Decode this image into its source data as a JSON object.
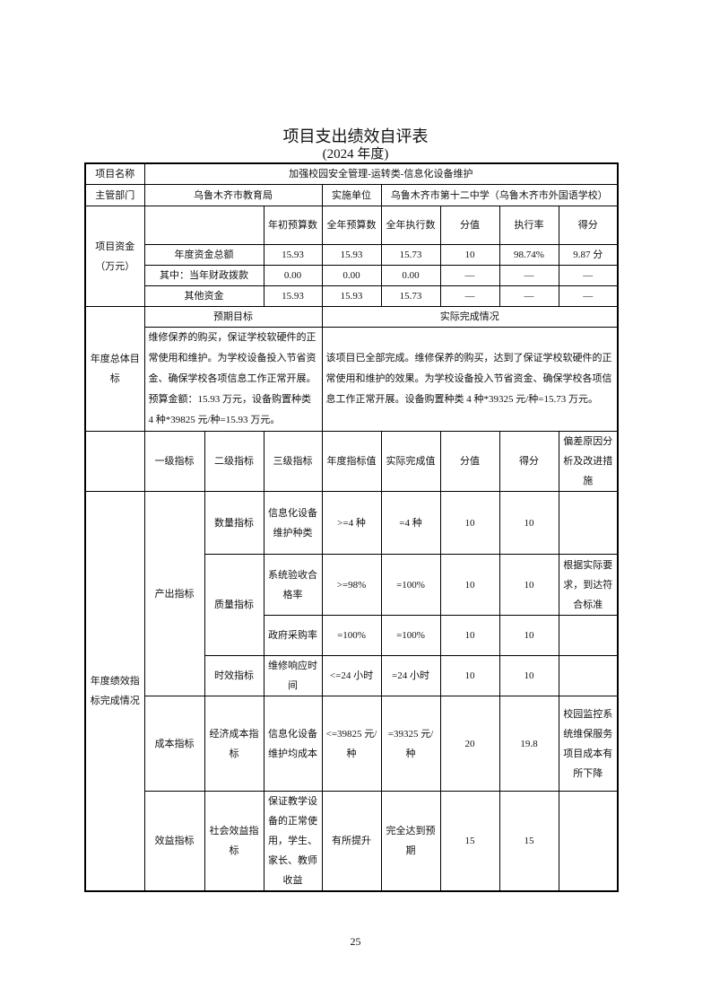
{
  "title": "项目支出绩效自评表",
  "subtitle": "(2024 年度)",
  "project": {
    "label": "项目名称",
    "value": "加强校园安全管理-运转类-信息化设备维护"
  },
  "dept": {
    "label": "主管部门",
    "value": "乌鲁木齐市教育局",
    "unit_label": "实施单位",
    "unit_value": "乌鲁木齐市第十二中学（乌鲁木齐市外国语学校）"
  },
  "funds": {
    "label": "项目资金（万元）",
    "headers": [
      "年初预算数",
      "全年预算数",
      "全年执行数",
      "分值",
      "执行率",
      "得分"
    ],
    "rows": [
      {
        "name": "年度资金总额",
        "values": [
          "15.93",
          "15.93",
          "15.73",
          "10",
          "98.74%",
          "9.87 分"
        ]
      },
      {
        "name": "其中：当年财政拨款",
        "values": [
          "0.00",
          "0.00",
          "0.00",
          "—",
          "—",
          "—"
        ]
      },
      {
        "name": "其他资金",
        "values": [
          "15.93",
          "15.93",
          "15.73",
          "—",
          "—",
          "—"
        ]
      }
    ]
  },
  "goals": {
    "label": "年度总体目标",
    "expected_header": "预期目标",
    "actual_header": "实际完成情况",
    "expected": "维修保养的购买，保证学校软硬件的正常使用和维护。为学校设备投入节省资金、确保学校各项信息工作正常开展。预算金额：15.93 万元，设备购置种类 4 种*39825 元/种=15.93 万元。",
    "actual": "该项目已全部完成。维修保养的购买，达到了保证学校软硬件的正常使用和维护的效果。为学校设备投入节省资金、确保学校各项信息工作正常开展。设备购置种类 4 种*39325 元/种=15.73 万元。"
  },
  "indicators": {
    "label": "年度绩效指标完成情况",
    "headers": [
      "一级指标",
      "二级指标",
      "三级指标",
      "年度指标值",
      "实际完成值",
      "分值",
      "得分",
      "偏差原因分析及改进措施"
    ],
    "level1": [
      "产出指标",
      "成本指标",
      "效益指标"
    ],
    "level2": [
      "数量指标",
      "质量指标",
      "时效指标",
      "经济成本指标",
      "社会效益指标"
    ],
    "rows": [
      {
        "level3": "信息化设备维护种类",
        "target": ">=4 种",
        "actual": "=4 种",
        "score_value": "10",
        "score": "10",
        "note": ""
      },
      {
        "level3": "系统验收合格率",
        "target": ">=98%",
        "actual": "=100%",
        "score_value": "10",
        "score": "10",
        "note": "根据实际要求，到达符合标准"
      },
      {
        "level3": "政府采购率",
        "target": "=100%",
        "actual": "=100%",
        "score_value": "10",
        "score": "10",
        "note": ""
      },
      {
        "level3": "维修响应时间",
        "target": "<=24 小时",
        "actual": "=24 小时",
        "score_value": "10",
        "score": "10",
        "note": ""
      },
      {
        "level3": "信息化设备维护均成本",
        "target": "<=39825 元/种",
        "actual": "=39325 元/种",
        "score_value": "20",
        "score": "19.8",
        "note": "校园监控系统维保服务项目成本有所下降"
      },
      {
        "level3": "保证教学设备的正常使用，学生、家长、教师收益",
        "target": "有所提升",
        "actual": "完全达到预期",
        "score_value": "15",
        "score": "15",
        "note": ""
      }
    ]
  },
  "page_number": "25"
}
